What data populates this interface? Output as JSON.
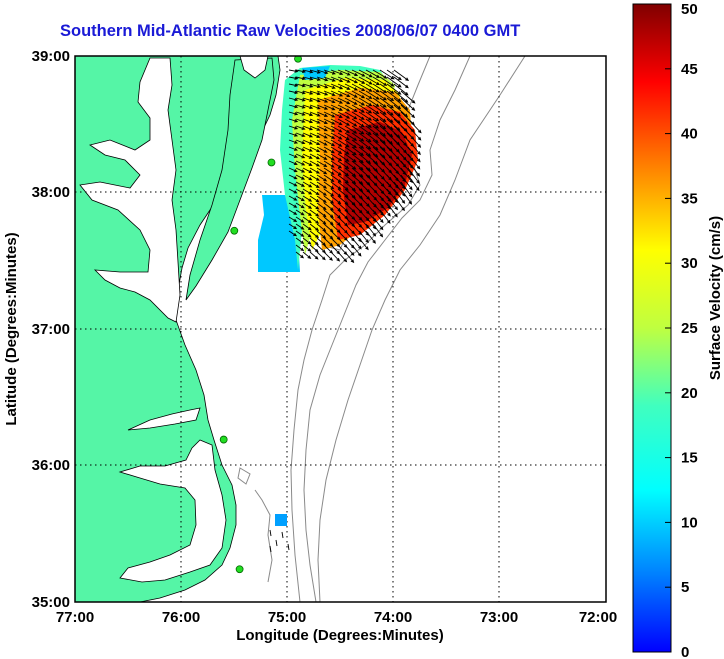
{
  "title": "Southern Mid-Atlantic Raw Velocities 2008/06/07 0400 GMT",
  "map": {
    "xlabel": "Longitude (Degrees:Minutes)",
    "ylabel": "Latitude (Degrees:Minutes)",
    "x_ticks": [
      "77:00",
      "76:00",
      "75:00",
      "74:00",
      "73:00",
      "72:00"
    ],
    "y_ticks": [
      "39:00",
      "38:00",
      "37:00",
      "36:00",
      "35:00"
    ],
    "lon_range": [
      -77,
      -72
    ],
    "lat_range": [
      35,
      39
    ],
    "land_color": "#55f5a6",
    "grid": "dotted"
  },
  "colorbar": {
    "label": "Surface Velocity (cm/s)",
    "ticks": [
      "50",
      "45",
      "40",
      "35",
      "30",
      "25",
      "20",
      "15",
      "10",
      "5",
      "0"
    ],
    "range": [
      0,
      50
    ],
    "colormap": "jet"
  },
  "stations": [
    {
      "lon": -74.9,
      "lat": 38.98
    },
    {
      "lon": -75.15,
      "lat": 38.22
    },
    {
      "lon": -75.5,
      "lat": 37.72
    },
    {
      "lon": -75.6,
      "lat": 36.19
    },
    {
      "lon": -75.45,
      "lat": 35.24
    }
  ]
}
